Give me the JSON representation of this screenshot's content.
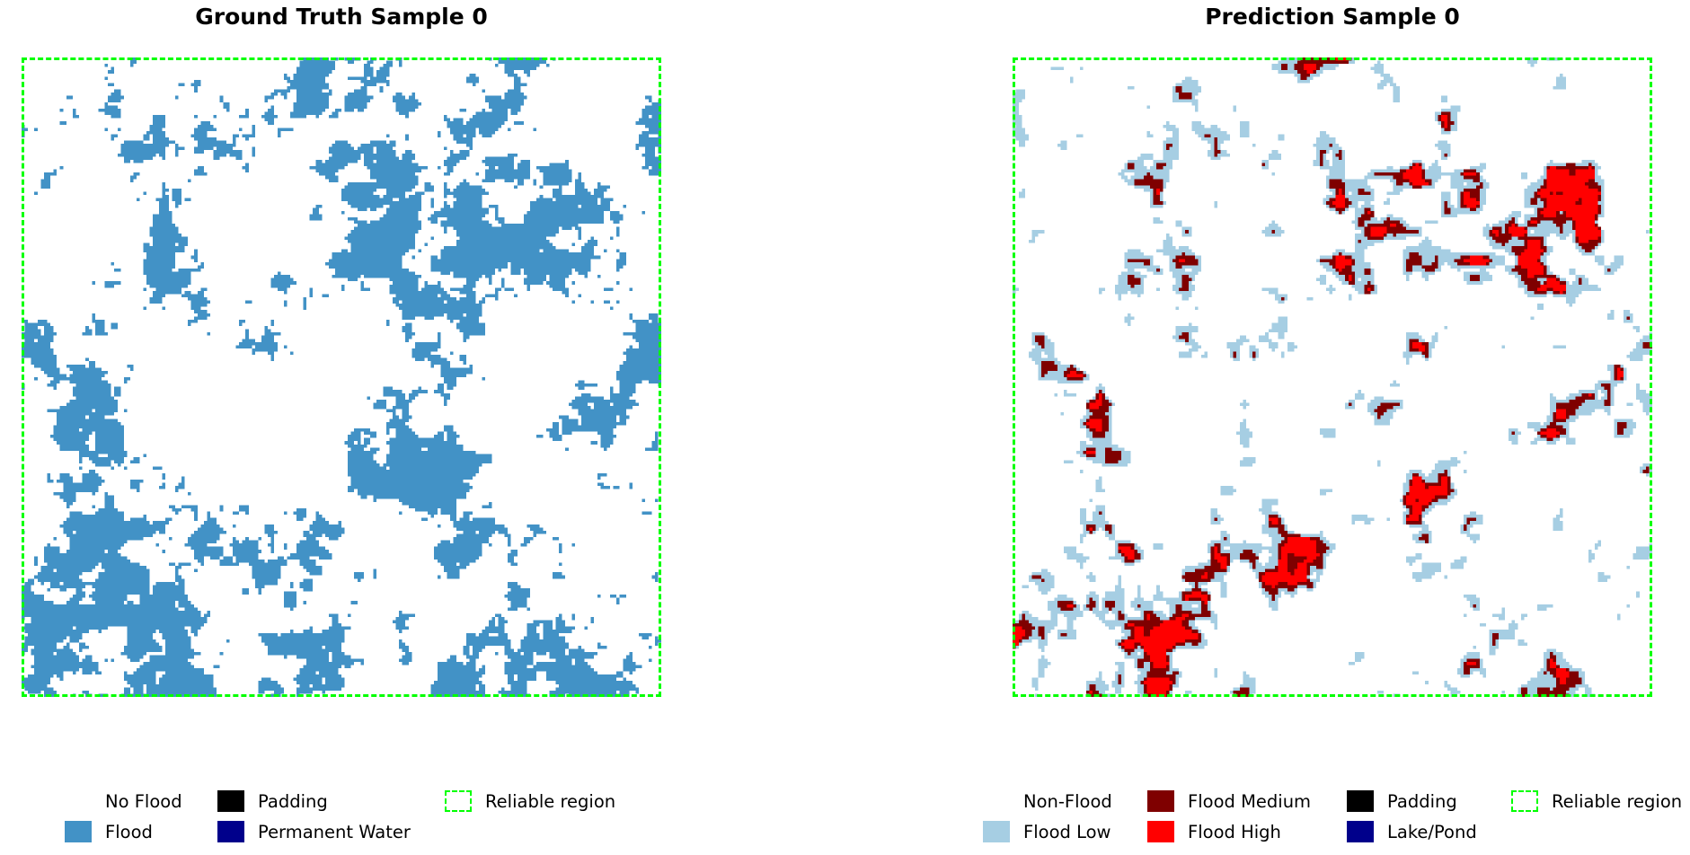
{
  "left_panel": {
    "title": "Ground Truth Sample 0",
    "legend": [
      {
        "label": "No Flood",
        "color": "#ffffff",
        "style": "solid"
      },
      {
        "label": "Flood",
        "color": "#4292c6",
        "style": "solid"
      },
      {
        "label": "Padding",
        "color": "#000000",
        "style": "solid"
      },
      {
        "label": "Permanent Water",
        "color": "#00008b",
        "style": "solid"
      },
      {
        "label": "Reliable region",
        "color": "#00ff00",
        "style": "dashed"
      }
    ]
  },
  "right_panel": {
    "title": "Prediction Sample 0",
    "legend": [
      {
        "label": "Non-Flood",
        "color": "#ffffff",
        "style": "solid"
      },
      {
        "label": "Flood Low",
        "color": "#a6cee3",
        "style": "solid"
      },
      {
        "label": "Flood Medium",
        "color": "#7f0000",
        "style": "solid"
      },
      {
        "label": "Flood High",
        "color": "#ff0000",
        "style": "solid"
      },
      {
        "label": "Padding",
        "color": "#000000",
        "style": "solid"
      },
      {
        "label": "Lake/Pond",
        "color": "#00008b",
        "style": "solid"
      },
      {
        "label": "Reliable region",
        "color": "#00ff00",
        "style": "dashed"
      }
    ]
  }
}
